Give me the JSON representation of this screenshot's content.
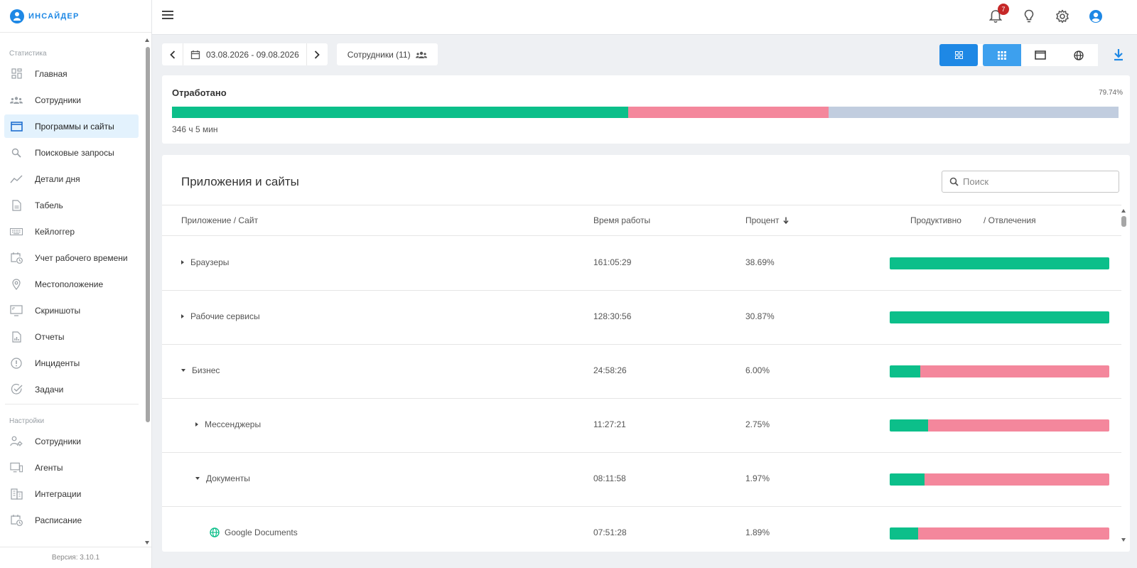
{
  "app": {
    "logo_text": "ИНСАЙДЕР",
    "version": "Версия: 3.10.1"
  },
  "sidebar": {
    "stats_label": "Статистика",
    "settings_label": "Настройки",
    "stats_items": [
      {
        "label": "Главная",
        "icon": "dashboard-icon"
      },
      {
        "label": "Сотрудники",
        "icon": "people-icon"
      },
      {
        "label": "Программы и сайты",
        "icon": "window-icon",
        "active": true
      },
      {
        "label": "Поисковые запросы",
        "icon": "search-icon"
      },
      {
        "label": "Детали дня",
        "icon": "trend-icon"
      },
      {
        "label": "Табель",
        "icon": "document-icon"
      },
      {
        "label": "Кейлоггер",
        "icon": "keyboard-icon"
      },
      {
        "label": "Учет рабочего времени",
        "icon": "calendar-clock-icon"
      },
      {
        "label": "Местоположение",
        "icon": "location-icon"
      },
      {
        "label": "Скриншоты",
        "icon": "screenshot-icon"
      },
      {
        "label": "Отчеты",
        "icon": "report-icon"
      },
      {
        "label": "Инциденты",
        "icon": "alert-icon"
      },
      {
        "label": "Задачи",
        "icon": "check-circle-icon"
      }
    ],
    "settings_items": [
      {
        "label": "Сотрудники",
        "icon": "user-settings-icon"
      },
      {
        "label": "Агенты",
        "icon": "monitor-icon"
      },
      {
        "label": "Интеграции",
        "icon": "building-icon"
      },
      {
        "label": "Расписание",
        "icon": "schedule-icon"
      }
    ]
  },
  "topbar": {
    "notification_count": "7"
  },
  "toolbar": {
    "date_range": "03.08.2026 - 09.08.2026",
    "employees_label": "Сотрудники (11)"
  },
  "worked": {
    "title": "Отработано",
    "percent": "79.74%",
    "total": "346 ч 5 мин",
    "segments": {
      "productive": 48.2,
      "distracting": 21.2
    }
  },
  "apps_table": {
    "title": "Приложения и сайты",
    "search_placeholder": "Поиск",
    "columns": {
      "name": "Приложение / Сайт",
      "time": "Время работы",
      "percent": "Процент",
      "productive": "Продуктивно",
      "distracting": "/ Отвлечения"
    },
    "rows": [
      {
        "name": "Браузеры",
        "time": "161:05:29",
        "percent": "38.69%",
        "level": 0,
        "expand": "collapsed",
        "productive_share": 100
      },
      {
        "name": "Рабочие сервисы",
        "time": "128:30:56",
        "percent": "30.87%",
        "level": 0,
        "expand": "collapsed",
        "productive_share": 100
      },
      {
        "name": "Бизнес",
        "time": "24:58:26",
        "percent": "6.00%",
        "level": 0,
        "expand": "expanded",
        "productive_share": 14
      },
      {
        "name": "Мессенджеры",
        "time": "11:27:21",
        "percent": "2.75%",
        "level": 1,
        "expand": "collapsed",
        "productive_share": 17.5
      },
      {
        "name": "Документы",
        "time": "08:11:58",
        "percent": "1.97%",
        "level": 1,
        "expand": "expanded",
        "productive_share": 16
      },
      {
        "name": "Google Documents",
        "time": "07:51:28",
        "percent": "1.89%",
        "level": 2,
        "expand": "none",
        "icon": "globe-icon",
        "productive_share": 13
      }
    ]
  },
  "colors": {
    "accent": "#1e88e5",
    "productive": "#0cbf8a",
    "distracting": "#f4879c",
    "idle": "#c1cddf"
  }
}
